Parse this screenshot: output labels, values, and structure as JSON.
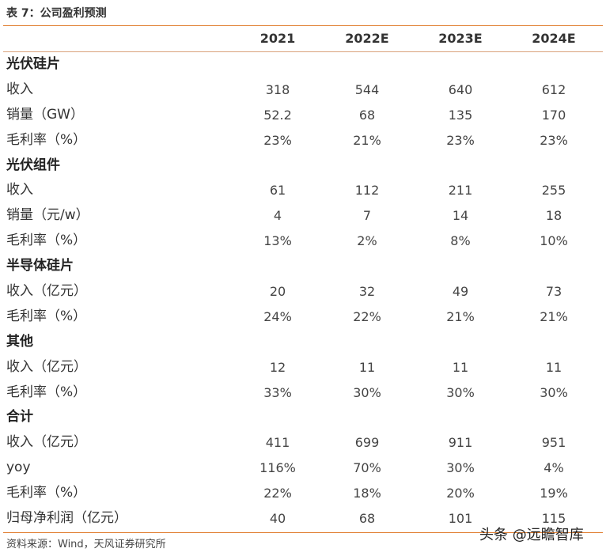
{
  "table": {
    "title": "表 7：公司盈利预测",
    "columns": [
      "2021",
      "2022E",
      "2023E",
      "2024E"
    ],
    "rows": [
      {
        "label": "光伏硅片",
        "section": true,
        "values": [
          "",
          "",
          "",
          ""
        ]
      },
      {
        "label": "收入",
        "section": false,
        "values": [
          "318",
          "544",
          "640",
          "612"
        ]
      },
      {
        "label": "销量（GW）",
        "section": false,
        "values": [
          "52.2",
          "68",
          "135",
          "170"
        ]
      },
      {
        "label": "毛利率（%）",
        "section": false,
        "values": [
          "23%",
          "21%",
          "23%",
          "23%"
        ]
      },
      {
        "label": "光伏组件",
        "section": true,
        "values": [
          "",
          "",
          "",
          ""
        ]
      },
      {
        "label": "收入",
        "section": false,
        "values": [
          "61",
          "112",
          "211",
          "255"
        ]
      },
      {
        "label": "销量（元/w）",
        "section": false,
        "values": [
          "4",
          "7",
          "14",
          "18"
        ]
      },
      {
        "label": "毛利率（%）",
        "section": false,
        "values": [
          "13%",
          "2%",
          "8%",
          "10%"
        ]
      },
      {
        "label": "半导体硅片",
        "section": true,
        "values": [
          "",
          "",
          "",
          ""
        ]
      },
      {
        "label": "收入（亿元）",
        "section": false,
        "values": [
          "20",
          "32",
          "49",
          "73"
        ]
      },
      {
        "label": "毛利率（%）",
        "section": false,
        "values": [
          "24%",
          "22%",
          "21%",
          "21%"
        ]
      },
      {
        "label": "其他",
        "section": true,
        "values": [
          "",
          "",
          "",
          ""
        ]
      },
      {
        "label": "收入（亿元）",
        "section": false,
        "values": [
          "12",
          "11",
          "11",
          "11"
        ]
      },
      {
        "label": "毛利率（%）",
        "section": false,
        "values": [
          "33%",
          "30%",
          "30%",
          "30%"
        ]
      },
      {
        "label": "合计",
        "section": true,
        "values": [
          "",
          "",
          "",
          ""
        ]
      },
      {
        "label": "收入（亿元）",
        "section": false,
        "values": [
          "411",
          "699",
          "911",
          "951"
        ]
      },
      {
        "label": "yoy",
        "section": false,
        "values": [
          "116%",
          "70%",
          "30%",
          "4%"
        ]
      },
      {
        "label": "毛利率（%）",
        "section": false,
        "values": [
          "22%",
          "18%",
          "20%",
          "19%"
        ]
      },
      {
        "label": "归母净利润（亿元）",
        "section": false,
        "values": [
          "40",
          "68",
          "101",
          "115"
        ]
      }
    ],
    "source": "资料来源：Wind，天风证券研究所"
  },
  "watermark": "头条 @远瞻智库",
  "colors": {
    "accent": "#e07a2a"
  }
}
